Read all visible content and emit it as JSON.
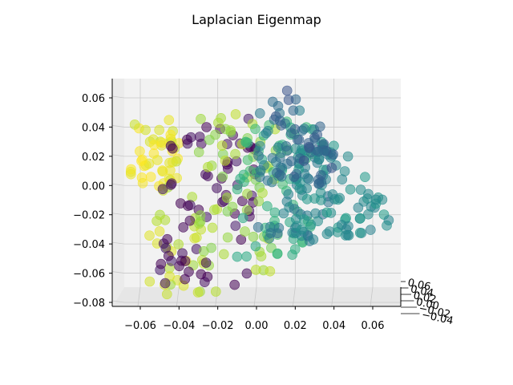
{
  "chart_data": {
    "type": "scatter",
    "projection": "3d",
    "title": "Laplacian Eigenmap",
    "xlabel": "",
    "ylabel": "",
    "zlabel": "",
    "x_ticks": [
      "−0.06",
      "−0.04",
      "−0.02",
      "0.00",
      "0.02",
      "0.04",
      "0.06"
    ],
    "y_ticks": [
      "0.06",
      "0.04",
      "0.02",
      "0.00",
      "−0.02",
      "−0.04"
    ],
    "z_ticks": [
      "0.06",
      "0.04",
      "0.02",
      "0.00",
      "−0.02",
      "−0.04",
      "−0.06",
      "−0.08"
    ],
    "xlim": [
      -0.075,
      0.075
    ],
    "zlim": [
      -0.083,
      0.07
    ],
    "grid": true,
    "colormap": "viridis",
    "marker_alpha": 0.55,
    "pane_color": "#f2f2f2",
    "grid_color": "#c8c8c8",
    "clusters": [
      {
        "x": [
          -0.065,
          -0.04
        ],
        "z": [
          -0.005,
          0.045
        ],
        "color_value": 0.97,
        "n": 45
      },
      {
        "x": [
          -0.06,
          -0.02
        ],
        "z": [
          -0.075,
          0.0
        ],
        "color_value": 0.9,
        "n": 35
      },
      {
        "x": [
          -0.05,
          0.0
        ],
        "z": [
          -0.07,
          0.05
        ],
        "color_value": 0.02,
        "n": 70
      },
      {
        "x": [
          -0.03,
          0.01
        ],
        "z": [
          -0.06,
          0.05
        ],
        "color_value": 0.85,
        "n": 55
      },
      {
        "x": [
          -0.01,
          0.03
        ],
        "z": [
          -0.05,
          0.05
        ],
        "color_value": 0.65,
        "n": 60
      },
      {
        "x": [
          0.0,
          0.04
        ],
        "z": [
          -0.04,
          0.06
        ],
        "color_value": 0.4,
        "n": 70
      },
      {
        "x": [
          0.02,
          0.07
        ],
        "z": [
          -0.04,
          0.03
        ],
        "color_value": 0.5,
        "n": 80
      },
      {
        "x": [
          0.01,
          0.04
        ],
        "z": [
          0.0,
          0.065
        ],
        "color_value": 0.3,
        "n": 40
      }
    ]
  }
}
